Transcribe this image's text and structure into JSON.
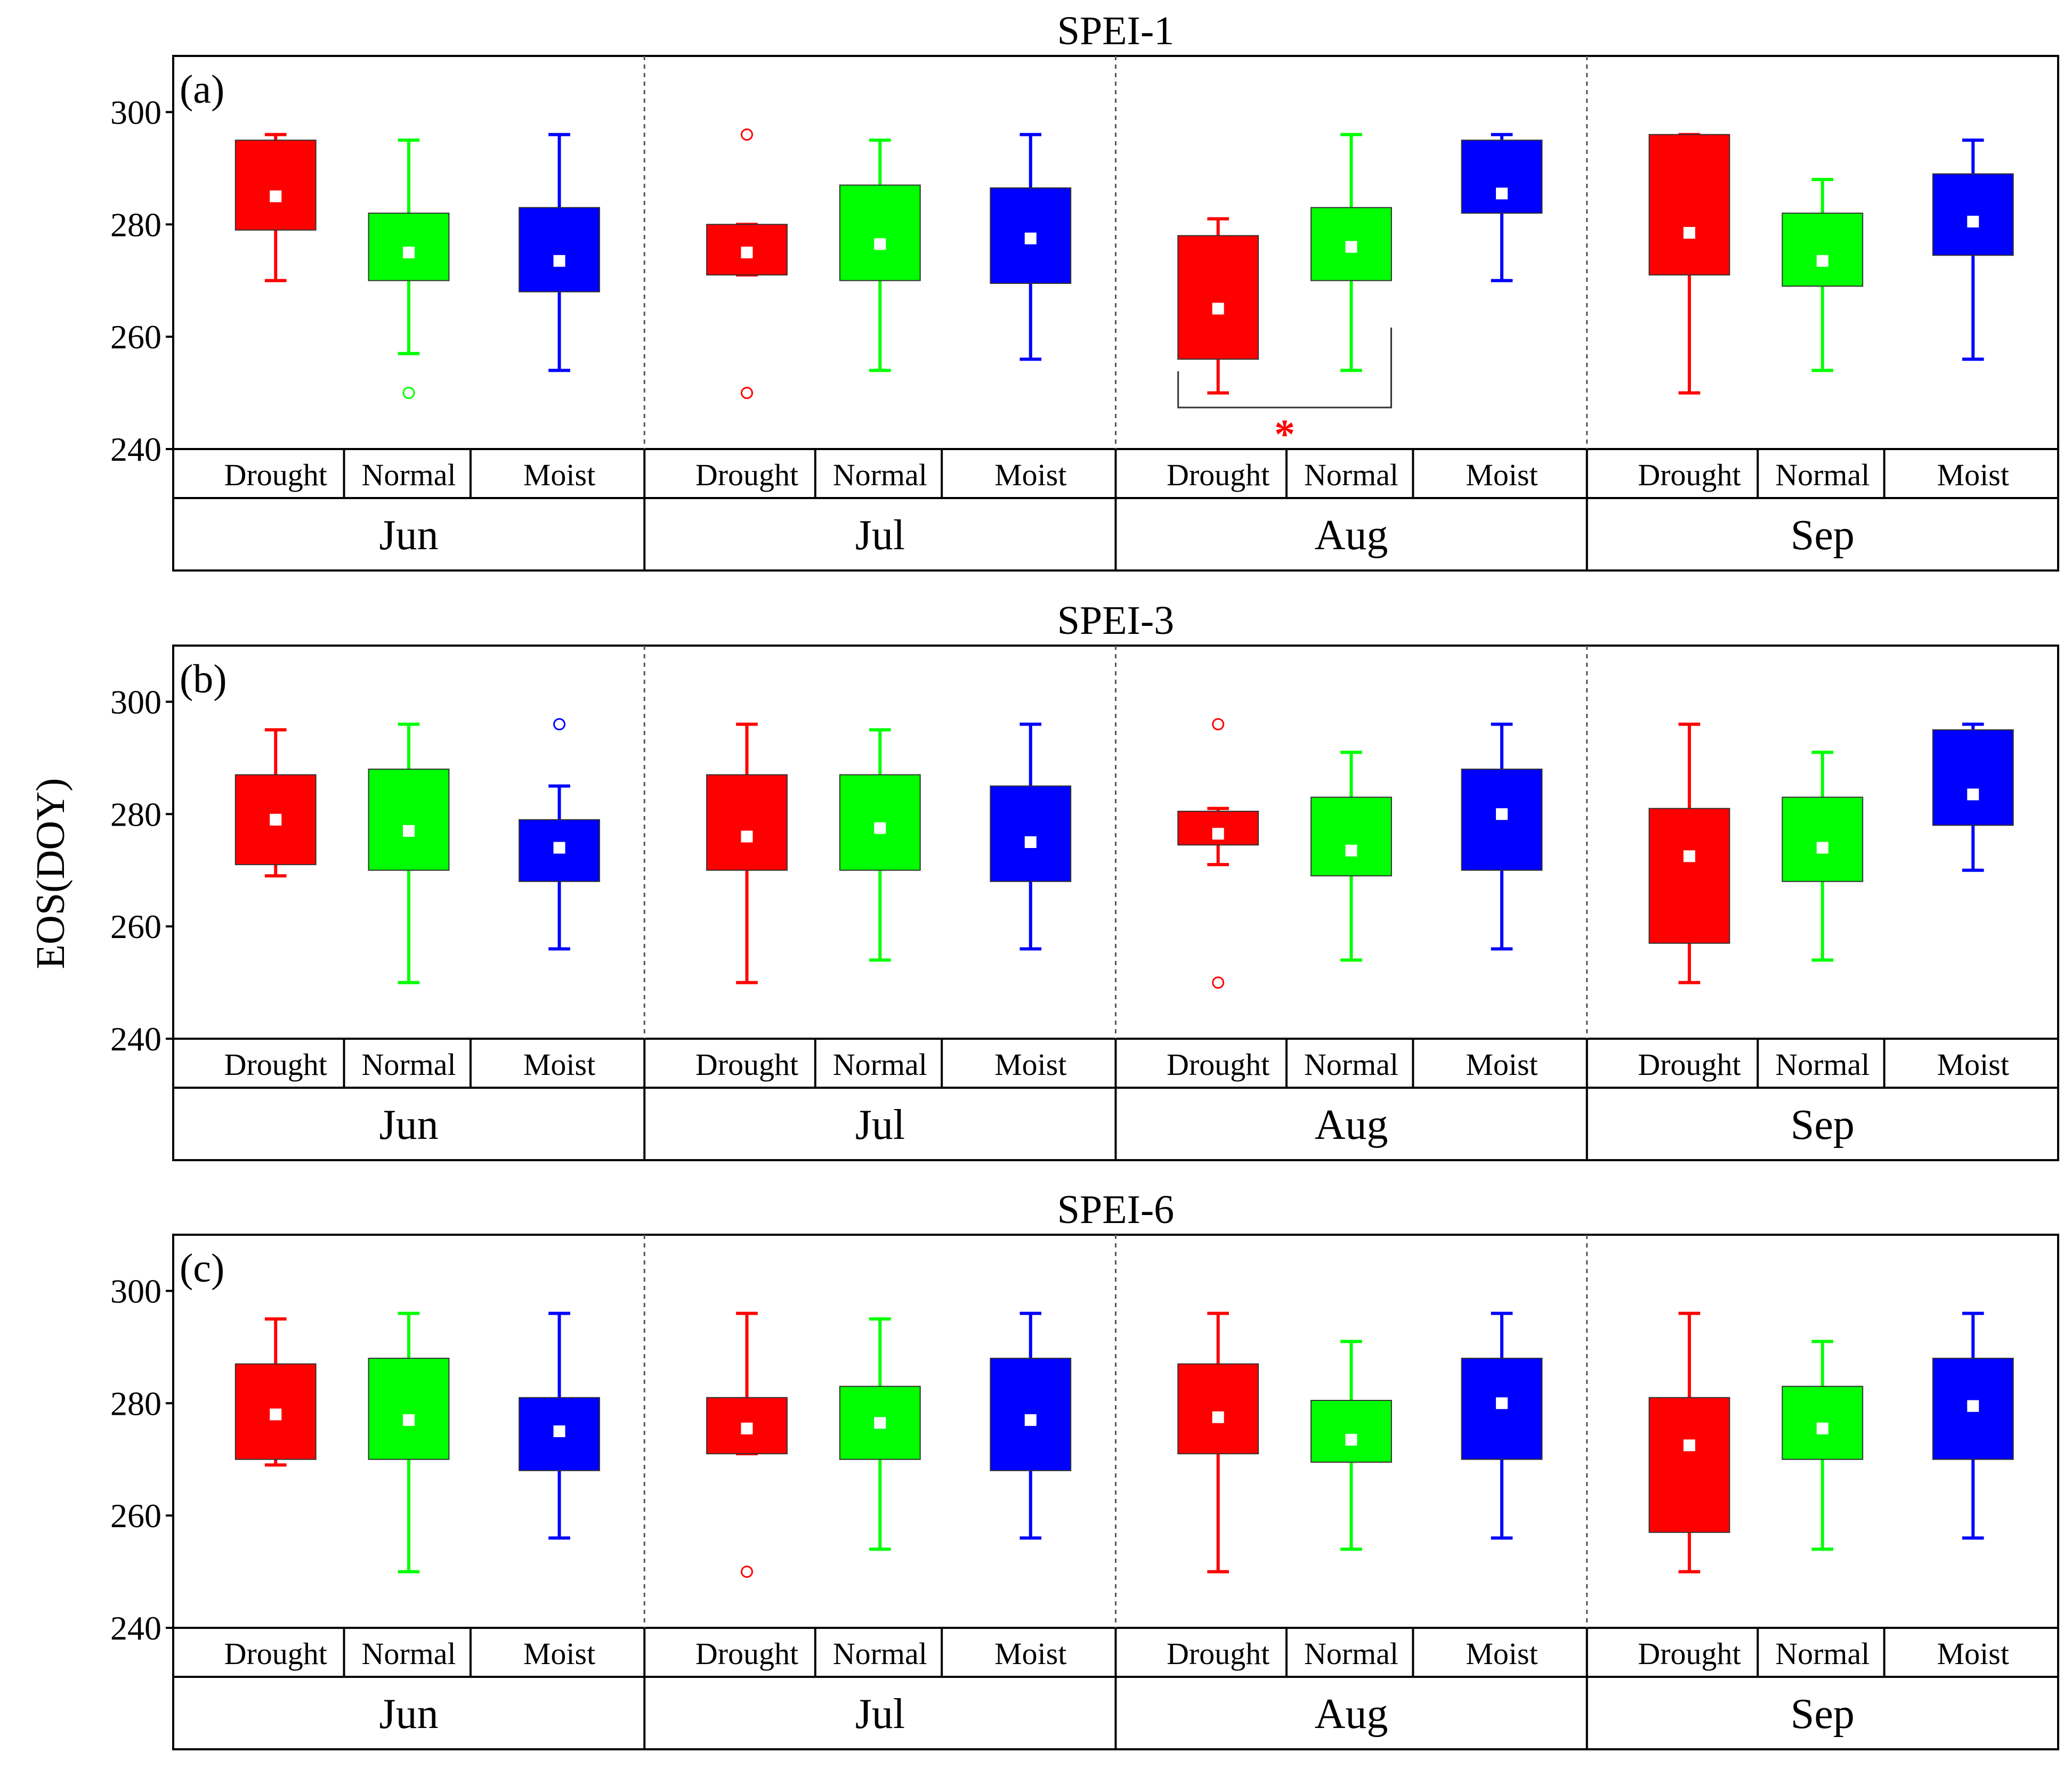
{
  "chart_data": {
    "type": "boxplot",
    "ylabel": "EOS(DOY)",
    "ylim": [
      240,
      310
    ],
    "yticks": [
      240,
      260,
      280,
      300
    ],
    "months": [
      "Jun",
      "Jul",
      "Aug",
      "Sep"
    ],
    "categories": [
      "Drought",
      "Normal",
      "Moist"
    ],
    "colors": {
      "Drought": "#ff0000",
      "Normal": "#00ff00",
      "Moist": "#0000ff"
    },
    "panels": [
      {
        "label": "(a)",
        "title": "SPEI-1",
        "groups": [
          {
            "month": "Jun",
            "boxes": [
              {
                "cat": "Drought",
                "min": 270,
                "q1": 279,
                "median": 285,
                "q3": 295,
                "max": 296,
                "outliers": []
              },
              {
                "cat": "Normal",
                "min": 257,
                "q1": 270,
                "median": 275,
                "q3": 282,
                "max": 295,
                "outliers": [
                  250
                ]
              },
              {
                "cat": "Moist",
                "min": 254,
                "q1": 268,
                "median": 273.5,
                "q3": 283,
                "max": 296,
                "outliers": []
              }
            ]
          },
          {
            "month": "Jul",
            "boxes": [
              {
                "cat": "Drought",
                "min": 271,
                "q1": 271,
                "median": 275,
                "q3": 280,
                "max": 280,
                "outliers": [
                  296,
                  250
                ]
              },
              {
                "cat": "Normal",
                "min": 254,
                "q1": 270,
                "median": 276.5,
                "q3": 287,
                "max": 295,
                "outliers": []
              },
              {
                "cat": "Moist",
                "min": 256,
                "q1": 269.5,
                "median": 277.5,
                "q3": 286.5,
                "max": 296,
                "outliers": []
              }
            ]
          },
          {
            "month": "Aug",
            "boxes": [
              {
                "cat": "Drought",
                "min": 250,
                "q1": 256,
                "median": 265,
                "q3": 278,
                "max": 281,
                "outliers": []
              },
              {
                "cat": "Normal",
                "min": 254,
                "q1": 270,
                "median": 276,
                "q3": 283,
                "max": 296,
                "outliers": []
              },
              {
                "cat": "Moist",
                "min": 270,
                "q1": 282,
                "median": 285.5,
                "q3": 295,
                "max": 296,
                "outliers": []
              }
            ]
          },
          {
            "month": "Sep",
            "boxes": [
              {
                "cat": "Drought",
                "min": 250,
                "q1": 271,
                "median": 278.5,
                "q3": 296,
                "max": 296,
                "outliers": []
              },
              {
                "cat": "Normal",
                "min": 254,
                "q1": 269,
                "median": 273.5,
                "q3": 282,
                "max": 288,
                "outliers": []
              },
              {
                "cat": "Moist",
                "min": 256,
                "q1": 274.5,
                "median": 280.5,
                "q3": 289,
                "max": 295,
                "outliers": []
              }
            ]
          }
        ],
        "significance": {
          "month": "Aug",
          "between": [
            "Drought",
            "Normal"
          ],
          "marker": "*"
        }
      },
      {
        "label": "(b)",
        "title": "SPEI-3",
        "groups": [
          {
            "month": "Jun",
            "boxes": [
              {
                "cat": "Drought",
                "min": 269,
                "q1": 271,
                "median": 279,
                "q3": 287,
                "max": 295,
                "outliers": []
              },
              {
                "cat": "Normal",
                "min": 250,
                "q1": 270,
                "median": 277,
                "q3": 288,
                "max": 296,
                "outliers": []
              },
              {
                "cat": "Moist",
                "min": 256,
                "q1": 268,
                "median": 274,
                "q3": 279,
                "max": 285,
                "outliers": [
                  296
                ]
              }
            ]
          },
          {
            "month": "Jul",
            "boxes": [
              {
                "cat": "Drought",
                "min": 250,
                "q1": 270,
                "median": 276,
                "q3": 287,
                "max": 296,
                "outliers": []
              },
              {
                "cat": "Normal",
                "min": 254,
                "q1": 270,
                "median": 277.5,
                "q3": 287,
                "max": 295,
                "outliers": []
              },
              {
                "cat": "Moist",
                "min": 256,
                "q1": 268,
                "median": 275,
                "q3": 285,
                "max": 296,
                "outliers": []
              }
            ]
          },
          {
            "month": "Aug",
            "boxes": [
              {
                "cat": "Drought",
                "min": 271,
                "q1": 274.5,
                "median": 276.5,
                "q3": 280.5,
                "max": 281,
                "outliers": [
                  296,
                  250
                ]
              },
              {
                "cat": "Normal",
                "min": 254,
                "q1": 269,
                "median": 273.5,
                "q3": 283,
                "max": 291,
                "outliers": []
              },
              {
                "cat": "Moist",
                "min": 256,
                "q1": 270,
                "median": 280,
                "q3": 288,
                "max": 296,
                "outliers": []
              }
            ]
          },
          {
            "month": "Sep",
            "boxes": [
              {
                "cat": "Drought",
                "min": 250,
                "q1": 257,
                "median": 272.5,
                "q3": 281,
                "max": 296,
                "outliers": []
              },
              {
                "cat": "Normal",
                "min": 254,
                "q1": 268,
                "median": 274,
                "q3": 283,
                "max": 291,
                "outliers": []
              },
              {
                "cat": "Moist",
                "min": 270,
                "q1": 278,
                "median": 283.5,
                "q3": 295,
                "max": 296,
                "outliers": []
              }
            ]
          }
        ]
      },
      {
        "label": "(c)",
        "title": "SPEI-6",
        "groups": [
          {
            "month": "Jun",
            "boxes": [
              {
                "cat": "Drought",
                "min": 269,
                "q1": 270,
                "median": 278,
                "q3": 287,
                "max": 295,
                "outliers": []
              },
              {
                "cat": "Normal",
                "min": 250,
                "q1": 270,
                "median": 277,
                "q3": 288,
                "max": 296,
                "outliers": []
              },
              {
                "cat": "Moist",
                "min": 256,
                "q1": 268,
                "median": 275,
                "q3": 281,
                "max": 296,
                "outliers": []
              }
            ]
          },
          {
            "month": "Jul",
            "boxes": [
              {
                "cat": "Drought",
                "min": 271,
                "q1": 271,
                "median": 275.5,
                "q3": 281,
                "max": 296,
                "outliers": [
                  250
                ]
              },
              {
                "cat": "Normal",
                "min": 254,
                "q1": 270,
                "median": 276.5,
                "q3": 283,
                "max": 295,
                "outliers": []
              },
              {
                "cat": "Moist",
                "min": 256,
                "q1": 268,
                "median": 277,
                "q3": 288,
                "max": 296,
                "outliers": []
              }
            ]
          },
          {
            "month": "Aug",
            "boxes": [
              {
                "cat": "Drought",
                "min": 250,
                "q1": 271,
                "median": 277.5,
                "q3": 287,
                "max": 296,
                "outliers": []
              },
              {
                "cat": "Normal",
                "min": 254,
                "q1": 269.5,
                "median": 273.5,
                "q3": 280.5,
                "max": 291,
                "outliers": []
              },
              {
                "cat": "Moist",
                "min": 256,
                "q1": 270,
                "median": 280,
                "q3": 288,
                "max": 296,
                "outliers": []
              }
            ]
          },
          {
            "month": "Sep",
            "boxes": [
              {
                "cat": "Drought",
                "min": 250,
                "q1": 257,
                "median": 272.5,
                "q3": 281,
                "max": 296,
                "outliers": []
              },
              {
                "cat": "Normal",
                "min": 254,
                "q1": 270,
                "median": 275.5,
                "q3": 283,
                "max": 291,
                "outliers": []
              },
              {
                "cat": "Moist",
                "min": 256,
                "q1": 270,
                "median": 279.5,
                "q3": 288,
                "max": 296,
                "outliers": []
              }
            ]
          }
        ]
      }
    ]
  }
}
